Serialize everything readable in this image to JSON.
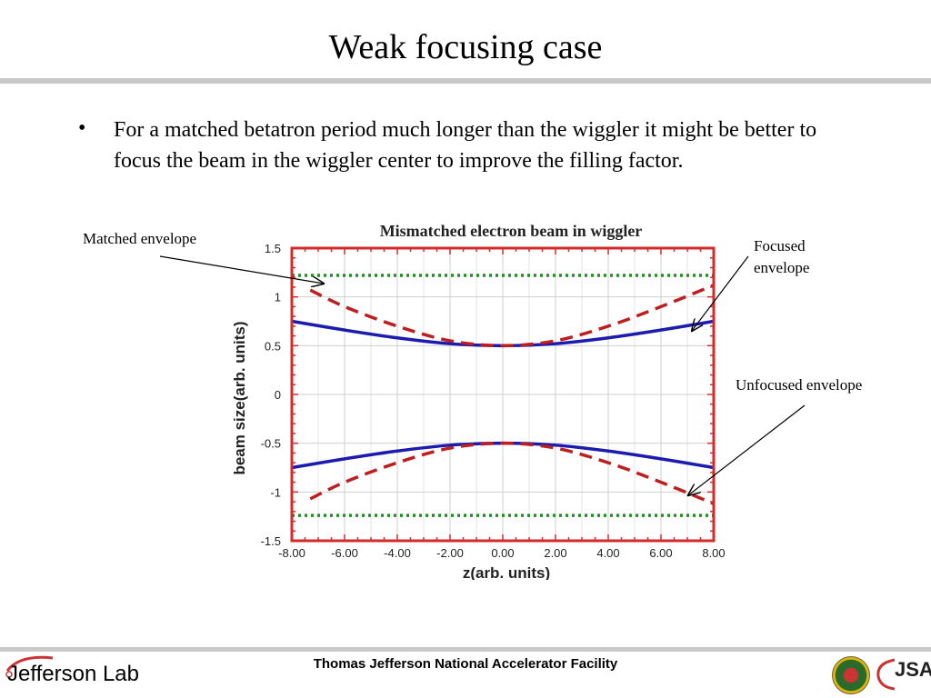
{
  "slide": {
    "title": "Weak focusing case",
    "bullet_symbol": "•",
    "body": "For a matched betatron period much longer than the wiggler it might be better to focus the beam in the wiggler center to improve the filling factor."
  },
  "annotations": {
    "matched": "Matched envelope",
    "focused": "Focused envelope",
    "unfocused": "Unfocused envelope"
  },
  "chart_data": {
    "type": "line",
    "title": "Mismatched electron beam in wiggler",
    "xlabel": "z(arb. units)",
    "ylabel": "beam size(arb. units)",
    "xlim": [
      -8,
      8
    ],
    "ylim": [
      -1.5,
      1.5
    ],
    "x_ticks": [
      "-8.00",
      "-6.00",
      "-4.00",
      "-2.00",
      "0.00",
      "2.00",
      "4.00",
      "6.00",
      "8.00"
    ],
    "y_ticks": [
      "1.5",
      "1",
      "0.5",
      "0",
      "-0.5",
      "-1",
      "-1.5"
    ],
    "grid": true,
    "colors": {
      "frame": "#d42a2a",
      "solid": "#1b1bb0",
      "dashed": "#bf1e1e",
      "dotted": "#1f8f1f",
      "grid": "#cfcfcf"
    },
    "series": [
      {
        "style": "solid",
        "color": "#1b1bb0",
        "x": [
          -8,
          -6,
          -4,
          -2,
          0,
          2,
          4,
          6,
          8
        ],
        "y": [
          0.75,
          0.66,
          0.58,
          0.52,
          0.5,
          0.52,
          0.58,
          0.66,
          0.75
        ]
      },
      {
        "style": "solid",
        "color": "#1b1bb0",
        "x": [
          -8,
          -6,
          -4,
          -2,
          0,
          2,
          4,
          6,
          8
        ],
        "y": [
          -0.75,
          -0.66,
          -0.58,
          -0.52,
          -0.5,
          -0.52,
          -0.58,
          -0.66,
          -0.75
        ]
      },
      {
        "style": "dashed",
        "color": "#bf1e1e",
        "x": [
          -7.3,
          -6,
          -4,
          -2,
          0,
          2,
          4,
          6,
          8
        ],
        "y": [
          1.07,
          0.9,
          0.7,
          0.55,
          0.5,
          0.55,
          0.7,
          0.9,
          1.12
        ]
      },
      {
        "style": "dashed",
        "color": "#bf1e1e",
        "x": [
          -7.3,
          -6,
          -4,
          -2,
          0,
          2,
          4,
          6,
          8
        ],
        "y": [
          -1.07,
          -0.9,
          -0.7,
          -0.55,
          -0.5,
          -0.55,
          -0.7,
          -0.9,
          -1.12
        ]
      },
      {
        "style": "dotted",
        "color": "#1f8f1f",
        "x": [
          -8,
          8
        ],
        "y": [
          1.22,
          1.22
        ]
      },
      {
        "style": "dotted",
        "color": "#1f8f1f",
        "x": [
          -8,
          8
        ],
        "y": [
          -1.24,
          -1.24
        ]
      }
    ]
  },
  "footer": {
    "organization": "Thomas Jefferson National Accelerator Facility",
    "left_logo": "Jefferson Lab",
    "right_logo": "JSA",
    "seal_icon": "doe-seal-icon"
  }
}
